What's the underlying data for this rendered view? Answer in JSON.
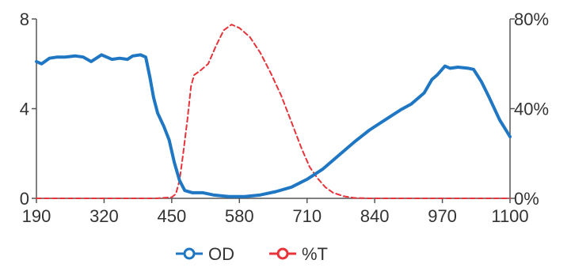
{
  "chart_data": {
    "type": "line",
    "title": "",
    "xlabel": "",
    "ylabel_left": "",
    "ylabel_right": "",
    "xlim": [
      190,
      1100
    ],
    "ylim_left": [
      0,
      8
    ],
    "ylim_right": [
      0,
      80
    ],
    "x_ticks": [
      190,
      320,
      450,
      580,
      710,
      840,
      970,
      1100
    ],
    "x_tick_labels": [
      "190",
      "320",
      "450",
      "580",
      "710",
      "840",
      "970",
      "1100"
    ],
    "y_left_ticks": [
      0,
      4,
      8
    ],
    "y_left_tick_labels": [
      "0",
      "4",
      "8"
    ],
    "y_right_ticks": [
      0,
      40,
      80
    ],
    "y_right_tick_labels": [
      "0%",
      "40%",
      "80%"
    ],
    "grid": false,
    "legend_position": "bottom-center",
    "series": [
      {
        "name": "OD",
        "axis": "left",
        "color": "#1f77c4",
        "style": "solid",
        "points": [
          [
            190,
            6.1
          ],
          [
            200,
            6.0
          ],
          [
            215,
            6.25
          ],
          [
            230,
            6.3
          ],
          [
            245,
            6.3
          ],
          [
            265,
            6.35
          ],
          [
            280,
            6.3
          ],
          [
            295,
            6.1
          ],
          [
            305,
            6.25
          ],
          [
            315,
            6.4
          ],
          [
            325,
            6.3
          ],
          [
            335,
            6.2
          ],
          [
            350,
            6.25
          ],
          [
            365,
            6.2
          ],
          [
            375,
            6.35
          ],
          [
            390,
            6.4
          ],
          [
            400,
            6.3
          ],
          [
            408,
            5.4
          ],
          [
            415,
            4.5
          ],
          [
            423,
            3.8
          ],
          [
            435,
            3.2
          ],
          [
            445,
            2.6
          ],
          [
            455,
            1.6
          ],
          [
            465,
            0.8
          ],
          [
            475,
            0.35
          ],
          [
            490,
            0.25
          ],
          [
            510,
            0.25
          ],
          [
            530,
            0.15
          ],
          [
            560,
            0.08
          ],
          [
            590,
            0.08
          ],
          [
            620,
            0.15
          ],
          [
            650,
            0.3
          ],
          [
            680,
            0.5
          ],
          [
            710,
            0.85
          ],
          [
            740,
            1.3
          ],
          [
            770,
            1.9
          ],
          [
            800,
            2.5
          ],
          [
            830,
            3.05
          ],
          [
            860,
            3.5
          ],
          [
            890,
            3.95
          ],
          [
            910,
            4.2
          ],
          [
            935,
            4.7
          ],
          [
            950,
            5.3
          ],
          [
            960,
            5.5
          ],
          [
            975,
            5.9
          ],
          [
            985,
            5.8
          ],
          [
            1000,
            5.85
          ],
          [
            1020,
            5.8
          ],
          [
            1030,
            5.75
          ],
          [
            1045,
            5.2
          ],
          [
            1060,
            4.5
          ],
          [
            1080,
            3.5
          ],
          [
            1100,
            2.75
          ]
        ]
      },
      {
        "name": "%T",
        "axis": "right",
        "color": "#e8333a",
        "style": "dashed",
        "points": [
          [
            190,
            0
          ],
          [
            350,
            0
          ],
          [
            420,
            0
          ],
          [
            450,
            0.5
          ],
          [
            458,
            2
          ],
          [
            465,
            8
          ],
          [
            472,
            20
          ],
          [
            480,
            35
          ],
          [
            487,
            50
          ],
          [
            493,
            55
          ],
          [
            505,
            57
          ],
          [
            520,
            60
          ],
          [
            535,
            68
          ],
          [
            550,
            75
          ],
          [
            565,
            77.5
          ],
          [
            580,
            76
          ],
          [
            600,
            72
          ],
          [
            620,
            65
          ],
          [
            640,
            56
          ],
          [
            660,
            46
          ],
          [
            680,
            34
          ],
          [
            700,
            22
          ],
          [
            715,
            14
          ],
          [
            730,
            9
          ],
          [
            745,
            5
          ],
          [
            760,
            2.5
          ],
          [
            780,
            1
          ],
          [
            800,
            0.2
          ],
          [
            830,
            0
          ],
          [
            900,
            0
          ],
          [
            1000,
            0
          ],
          [
            1100,
            0
          ]
        ]
      }
    ]
  }
}
